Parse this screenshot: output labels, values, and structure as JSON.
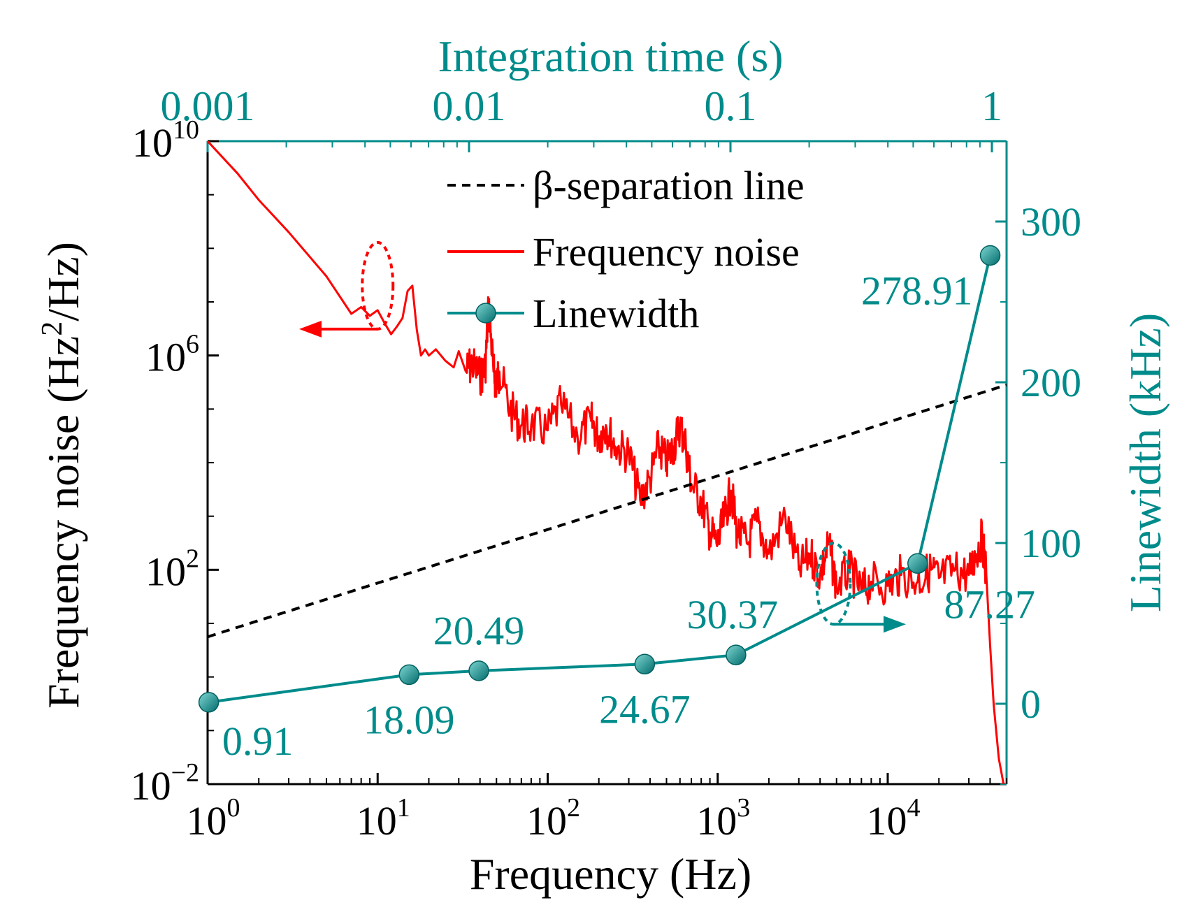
{
  "chart_data": {
    "type": "line",
    "colors": {
      "noise": "#ff0000",
      "linewidth": "#008b8b",
      "separation": "#000000",
      "axis_right_top": "#008b8b",
      "axis_left_bottom": "#000000"
    },
    "bottom_axis": {
      "label": "Frequency (Hz)",
      "scale": "log",
      "range": [
        1,
        50000
      ],
      "major_ticks": [
        1,
        10,
        100,
        1000,
        10000
      ],
      "tick_labels": [
        {
          "base": "10",
          "exp": "0"
        },
        {
          "base": "10",
          "exp": "1"
        },
        {
          "base": "10",
          "exp": "2"
        },
        {
          "base": "10",
          "exp": "3"
        },
        {
          "base": "10",
          "exp": "4"
        }
      ]
    },
    "left_axis": {
      "label": "Frequency noise",
      "label_unit": "(Hz",
      "label_sup": "2",
      "label_tail": "/Hz)",
      "scale": "log",
      "range": [
        0.01,
        10000000000
      ],
      "major_ticks": [
        0.01,
        100,
        1000000,
        10000000000
      ],
      "tick_labels": [
        {
          "base": "10",
          "exp": "−2"
        },
        {
          "base": "10",
          "exp": "2"
        },
        {
          "base": "10",
          "exp": "6"
        },
        {
          "base": "10",
          "exp": "10"
        }
      ]
    },
    "top_axis": {
      "label": "Integration time (s)",
      "scale": "log",
      "range": [
        0.001,
        1
      ],
      "ticks": [
        0.001,
        0.01,
        0.1,
        1
      ],
      "tick_labels": [
        "0.001",
        "0.01",
        "0.1",
        "1"
      ]
    },
    "right_axis": {
      "label": "Linewidth (kHz)",
      "scale": "linear",
      "range": [
        -50,
        350
      ],
      "ticks": [
        0,
        100,
        200,
        300
      ],
      "tick_labels": [
        "0",
        "100",
        "200",
        "300"
      ]
    },
    "legend": {
      "position": "top-center",
      "entries": [
        {
          "label": "β-separation line",
          "style": "dashed"
        },
        {
          "label": "Frequency noise",
          "style": "solid"
        },
        {
          "label": "Linewidth",
          "style": "line-marker"
        }
      ]
    },
    "series": [
      {
        "name": "Frequency noise",
        "axis": "bottom-left",
        "x": [
          1,
          1.5,
          2,
          3,
          5,
          7,
          8,
          9,
          10,
          11,
          12,
          13,
          14,
          15,
          16,
          17,
          18,
          19,
          20,
          22,
          25,
          28,
          30,
          33,
          36,
          40,
          43,
          45,
          48,
          50,
          52,
          60,
          70,
          80,
          100,
          120,
          150,
          180,
          200,
          220,
          250,
          300,
          350,
          400,
          450,
          500,
          550,
          600,
          650,
          700,
          800,
          900,
          1000,
          1100,
          1200,
          1300,
          1500,
          1700,
          2000,
          2500,
          3000,
          3500,
          4000,
          4500,
          5000,
          6000,
          7000,
          8000,
          10000,
          12000,
          15000,
          18000,
          20000,
          25000,
          30000,
          33000,
          36000,
          38000,
          40000,
          42000,
          45000,
          48000
        ],
        "y": [
          10000000000.0,
          2500000000.0,
          800000000.0,
          200000000.0,
          30000000.0,
          6000000.0,
          8000000.0,
          5500000.0,
          7000000.0,
          4000000.0,
          2500000.0,
          3500000.0,
          5000000.0,
          16000000.0,
          20000000.0,
          3000000.0,
          1000000.0,
          1300000.0,
          1000000.0,
          1300000.0,
          800000.0,
          600000.0,
          1200000.0,
          500000.0,
          700000.0,
          400000.0,
          600000.0,
          9000000.0,
          500000.0,
          300000.0,
          500000.0,
          100000.0,
          50000.0,
          50000.0,
          40000.0,
          120000.0,
          30000.0,
          60000.0,
          30000.0,
          50000.0,
          20000.0,
          15000.0,
          2000.0,
          5000.0,
          20000.0,
          10000.0,
          20000.0,
          50000.0,
          20000.0,
          4000.0,
          2000.0,
          500.0,
          300.0,
          1000.0,
          3000.0,
          500.0,
          300.0,
          800.0,
          200.0,
          1000.0,
          100.0,
          200.0,
          80.0,
          300.0,
          50.0,
          100.0,
          40.0,
          60.0,
          50.0,
          80.0,
          60.0,
          100.0,
          70.0,
          100.0,
          80.0,
          200.0,
          400.0,
          80.0,
          4.0,
          0.3,
          0.03,
          0.01
        ]
      },
      {
        "name": "β-separation line",
        "axis": "bottom-left",
        "x": [
          1,
          2,
          5,
          10,
          20,
          50,
          100,
          200,
          500,
          1000,
          2000,
          5000,
          10000,
          20000,
          50000
        ],
        "y": [
          5.6,
          11.3,
          28.2,
          56.5,
          113,
          282,
          565,
          1130,
          2820,
          5650,
          11300,
          28200,
          56500,
          113000,
          282000
        ]
      },
      {
        "name": "Linewidth",
        "axis": "top-right",
        "x": [
          0.00101,
          0.0059,
          0.0109,
          0.047,
          0.105,
          0.52,
          0.985
        ],
        "y": [
          0.91,
          18.09,
          20.49,
          24.67,
          30.37,
          87.27,
          278.91
        ],
        "labels": [
          "0.91",
          "18.09",
          "20.49",
          "24.67",
          "30.37",
          "87.27",
          "278.91"
        ]
      }
    ],
    "annotations": [
      {
        "target": "Frequency noise",
        "shape": "dashed-ellipse-with-arrow",
        "arrow_direction": "left"
      },
      {
        "target": "Linewidth",
        "shape": "dashed-ellipse-with-arrow",
        "arrow_direction": "right"
      }
    ]
  }
}
